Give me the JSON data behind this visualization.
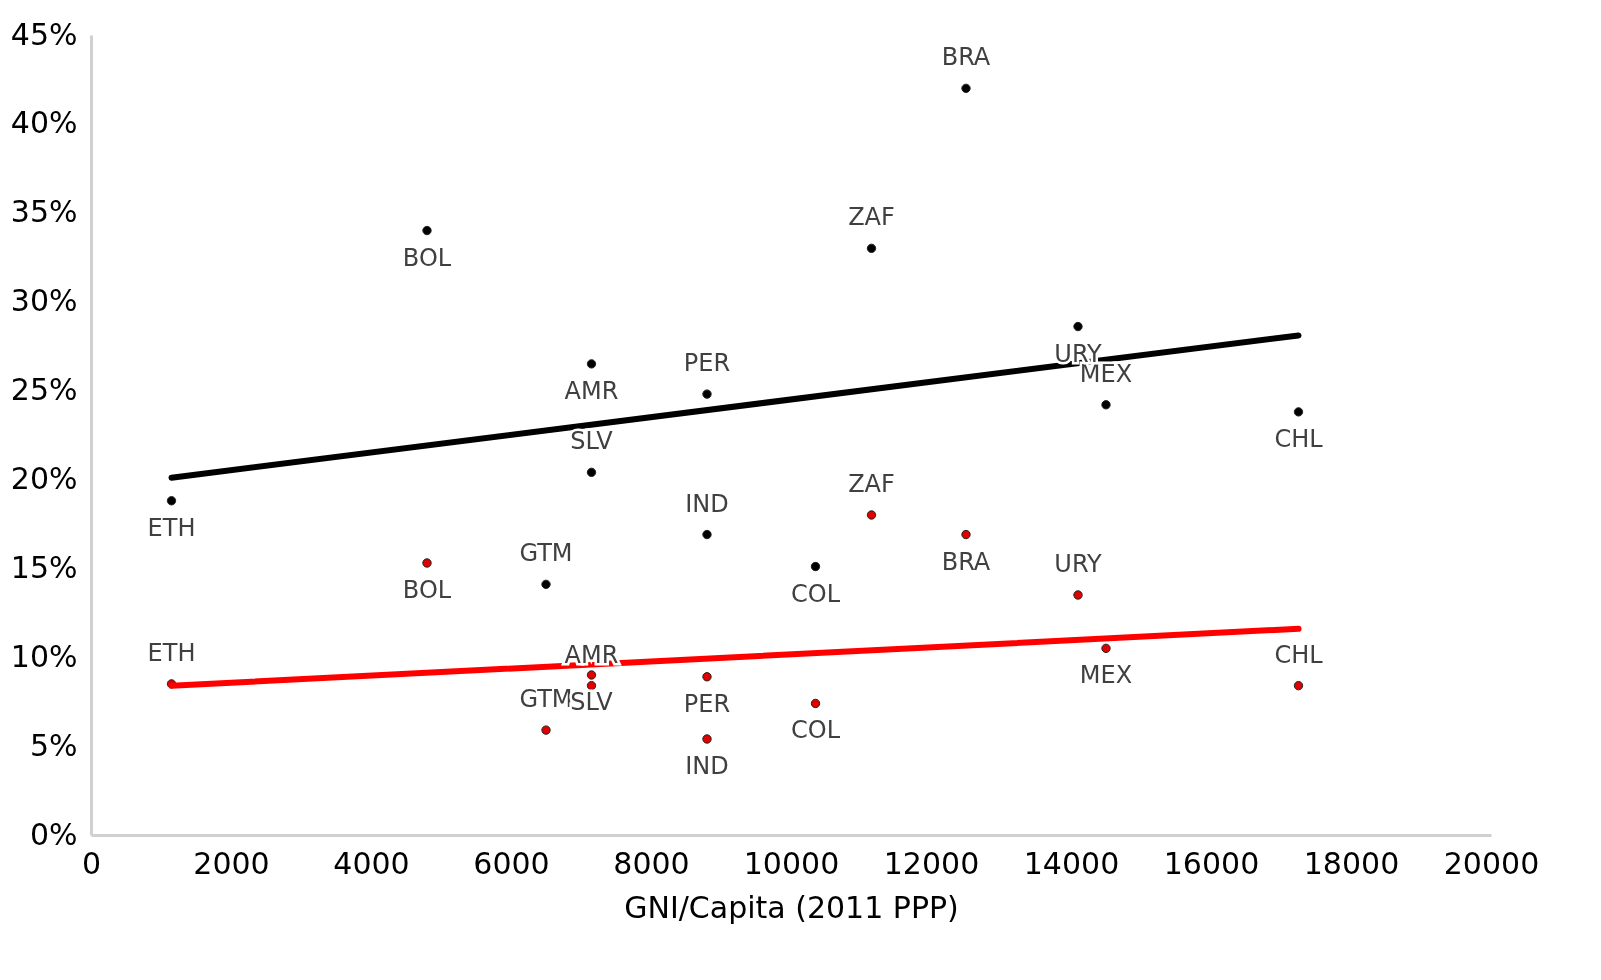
{
  "chart_data": {
    "type": "scatter",
    "xlabel": "GNI/Capita (2011 PPP)",
    "xlim": [
      0,
      20000
    ],
    "xticks": [
      0,
      2000,
      4000,
      6000,
      8000,
      10000,
      12000,
      14000,
      16000,
      18000,
      20000
    ],
    "ylim": [
      0,
      45
    ],
    "yticks": [
      {
        "value": 0,
        "label": "0%"
      },
      {
        "value": 5,
        "label": "5%"
      },
      {
        "value": 10,
        "label": "10%"
      },
      {
        "value": 15,
        "label": "15%"
      },
      {
        "value": 20,
        "label": "20%"
      },
      {
        "value": 25,
        "label": "25%"
      },
      {
        "value": 30,
        "label": "30%"
      },
      {
        "value": 35,
        "label": "35%"
      },
      {
        "value": 40,
        "label": "40%"
      },
      {
        "value": 45,
        "label": "45%"
      }
    ],
    "grid": false,
    "series": [
      {
        "color": "#000000",
        "x": [
          12500,
          4800,
          11150,
          7150,
          8800,
          14100,
          14500,
          17250,
          7150,
          1150,
          8800,
          10350,
          6500
        ],
        "values": [
          42,
          34,
          33,
          26.5,
          24.8,
          28.6,
          24.2,
          23.8,
          20.4,
          18.8,
          16.9,
          15.1,
          14.1
        ]
      },
      {
        "color": "#e00000",
        "x": [
          12500,
          11150,
          4800,
          14100,
          14500,
          1150,
          7150,
          7150,
          8800,
          17250,
          10350,
          6500,
          8800
        ],
        "values": [
          16.9,
          18,
          15.3,
          13.5,
          10.5,
          8.5,
          9,
          8.4,
          8.9,
          8.4,
          7.4,
          5.9,
          5.4
        ]
      },
      {
        "type": "line",
        "color": "#000000",
        "x": [
          1150,
          17250
        ],
        "values": [
          20.1,
          28.1
        ]
      },
      {
        "type": "line",
        "color": "#ff0000",
        "x": [
          1150,
          17250
        ],
        "values": [
          8.4,
          11.6
        ]
      }
    ],
    "annotations": [
      {
        "text": "BRA",
        "x": 12500,
        "y": 42
      },
      {
        "text": "BOL",
        "x": 4800,
        "y": 34
      },
      {
        "text": "ZAF",
        "x": 11150,
        "y": 33
      },
      {
        "text": "AMR",
        "x": 7150,
        "y": 26.5
      },
      {
        "text": "PER",
        "x": 8800,
        "y": 24.8
      },
      {
        "text": "URY",
        "x": 14100,
        "y": 28.6
      },
      {
        "text": "MEX",
        "x": 14500,
        "y": 24.2
      },
      {
        "text": "CHL",
        "x": 17250,
        "y": 23.8
      },
      {
        "text": "SLV",
        "x": 7150,
        "y": 20.4
      },
      {
        "text": "ETH",
        "x": 1150,
        "y": 18.8
      },
      {
        "text": "IND",
        "x": 8800,
        "y": 16.9
      },
      {
        "text": "COL",
        "x": 10350,
        "y": 15.1
      },
      {
        "text": "GTM",
        "x": 6500,
        "y": 14.1
      },
      {
        "text": "BRA",
        "x": 12500,
        "y": 16.9
      },
      {
        "text": "ZAF",
        "x": 11150,
        "y": 18
      },
      {
        "text": "BOL",
        "x": 4800,
        "y": 15.3
      },
      {
        "text": "URY",
        "x": 14100,
        "y": 13.5
      },
      {
        "text": "MEX",
        "x": 14500,
        "y": 10.5
      },
      {
        "text": "ETH",
        "x": 1150,
        "y": 8.5
      },
      {
        "text": "SLV",
        "x": 7150,
        "y": 9
      },
      {
        "text": "AMR",
        "x": 7150,
        "y": 8.4
      },
      {
        "text": "PER",
        "x": 8800,
        "y": 8.9
      },
      {
        "text": "CHL",
        "x": 17250,
        "y": 8.4
      },
      {
        "text": "COL",
        "x": 10350,
        "y": 7.4
      },
      {
        "text": "GTM",
        "x": 6500,
        "y": 5.9
      },
      {
        "text": "IND",
        "x": 8800,
        "y": 5.4
      }
    ]
  }
}
